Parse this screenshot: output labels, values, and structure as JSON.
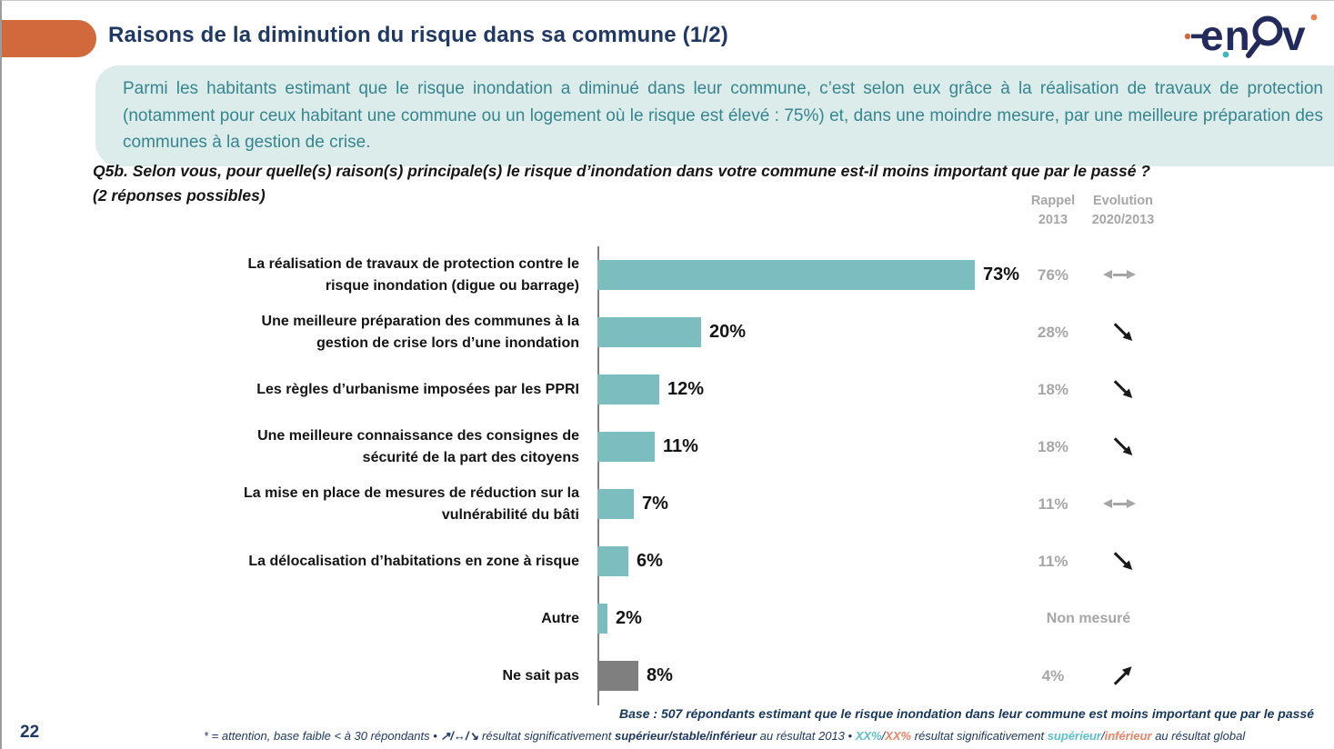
{
  "page": {
    "number": "22",
    "title": "Raisons de la diminution du risque dans sa commune (1/2)",
    "logo_en": "en",
    "logo_v": "v",
    "intro": "Parmi les habitants estimant que le risque inondation a diminué dans leur commune, c’est selon eux grâce à la réalisation de travaux de protection (notamment pour ceux habitant une commune ou un logement où le risque est élevé : 75%) et, dans une moindre mesure, par une meilleure préparation des communes à la gestion de crise.",
    "question_line1": "Q5b. Selon vous, pour quelle(s) raison(s) principale(s) le risque d’inondation dans votre commune est-il moins important que par le passé ?",
    "question_line2": "(2 réponses possibles)"
  },
  "columns": {
    "rappel": "Rappel",
    "rappel_year": "2013",
    "evolution": "Evolution",
    "evolution_years": "2020/2013"
  },
  "chart_data": {
    "type": "bar",
    "orientation": "horizontal",
    "unit": "percent",
    "xlim": [
      0,
      80
    ],
    "categories": [
      "La réalisation de travaux de protection contre le risque inondation (digue ou barrage)",
      "Une meilleure préparation des communes à la gestion de crise lors d’une inondation",
      "Les règles d’urbanisme imposées par les PPRI",
      "Une meilleure connaissance des consignes de sécurité de la part des citoyens",
      "La mise en place de mesures de réduction sur la vulnérabilité du bâti",
      "La délocalisation d’habitations en zone à risque",
      "Autre",
      "Ne sait pas"
    ],
    "values": [
      73,
      20,
      12,
      11,
      7,
      6,
      2,
      8
    ],
    "rows": [
      {
        "label": "La réalisation de travaux de protection contre le risque inondation (digue ou barrage)",
        "value": 73,
        "display": "73%",
        "bar_color": "#7cbdbf",
        "rappel_2013": "76%",
        "evolution": "stable"
      },
      {
        "label": "Une meilleure préparation des communes à la gestion de crise lors d’une inondation",
        "value": 20,
        "display": "20%",
        "bar_color": "#7cbdbf",
        "rappel_2013": "28%",
        "evolution": "down"
      },
      {
        "label": "Les règles d’urbanisme imposées par les PPRI",
        "value": 12,
        "display": "12%",
        "bar_color": "#7cbdbf",
        "rappel_2013": "18%",
        "evolution": "down"
      },
      {
        "label": "Une meilleure connaissance des consignes de sécurité de la part des citoyens",
        "value": 11,
        "display": "11%",
        "bar_color": "#7cbdbf",
        "rappel_2013": "18%",
        "evolution": "down"
      },
      {
        "label": "La mise en place de mesures de réduction sur la vulnérabilité du bâti",
        "value": 7,
        "display": "7%",
        "bar_color": "#7cbdbf",
        "rappel_2013": "11%",
        "evolution": "stable"
      },
      {
        "label": "La délocalisation d’habitations en zone à risque",
        "value": 6,
        "display": "6%",
        "bar_color": "#7cbdbf",
        "rappel_2013": "11%",
        "evolution": "down"
      },
      {
        "label": "Autre",
        "value": 2,
        "display": "2%",
        "bar_color": "#7cbdbf",
        "rappel_2013": "Non mesuré",
        "evolution": "none"
      },
      {
        "label": "Ne sait pas",
        "value": 8,
        "display": "8%",
        "bar_color": "#7f7f7f",
        "rappel_2013": "4%",
        "evolution": "up"
      }
    ]
  },
  "footer": {
    "base": "Base : 507 répondants estimant que le risque inondation dans leur commune est moins important que par le passé",
    "legend": {
      "seg1": "* = attention, base faible < à 30 répondants • ",
      "arrows": "↗/↔/↘",
      "seg2": " résultat significativement ",
      "bold1": "supérieur/stable/inférieur",
      "seg3": " au résultat 2013 • ",
      "xx1": "XX%",
      "slash1": "/",
      "xx2": "XX%",
      "seg4": " résultat significativement ",
      "sup": "supérieur",
      "slash2": "/",
      "inf": "inférieur",
      "seg5": " au résultat global"
    }
  },
  "colors": {
    "accent_orange": "#d2693c",
    "title_navy": "#203864",
    "bar_teal": "#7cbdbf",
    "bar_gray": "#7f7f7f",
    "muted_gray": "#a6a6a6",
    "intro_bg": "#dbeceb",
    "intro_text": "#36858f",
    "legend_teal": "#5bbfce",
    "legend_coral": "#ed8366"
  }
}
